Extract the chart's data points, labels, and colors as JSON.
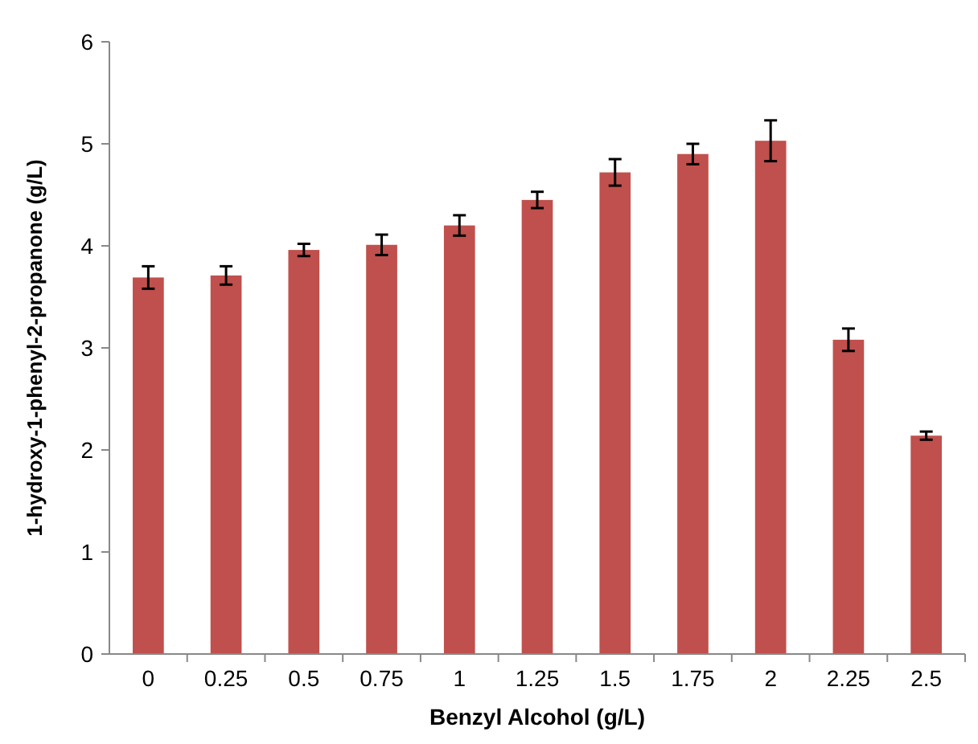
{
  "chart_data": {
    "type": "bar",
    "xlabel": "Benzyl Alcohol (g/L)",
    "ylabel": "1-hydroxy-1-phenyl-2-propanone  (g/L)",
    "categories": [
      "0",
      "0.25",
      "0.5",
      "0.75",
      "1",
      "1.25",
      "1.5",
      "1.75",
      "2",
      "2.25",
      "2.5"
    ],
    "values": [
      3.69,
      3.71,
      3.96,
      4.01,
      4.2,
      4.45,
      4.72,
      4.9,
      5.03,
      3.08,
      2.14
    ],
    "errors": [
      0.11,
      0.09,
      0.06,
      0.1,
      0.1,
      0.08,
      0.13,
      0.1,
      0.2,
      0.11,
      0.04
    ],
    "color": "#c0504d",
    "ylim": [
      0,
      6
    ],
    "yticks": [
      0,
      1,
      2,
      3,
      4,
      5,
      6
    ],
    "grid": false
  }
}
